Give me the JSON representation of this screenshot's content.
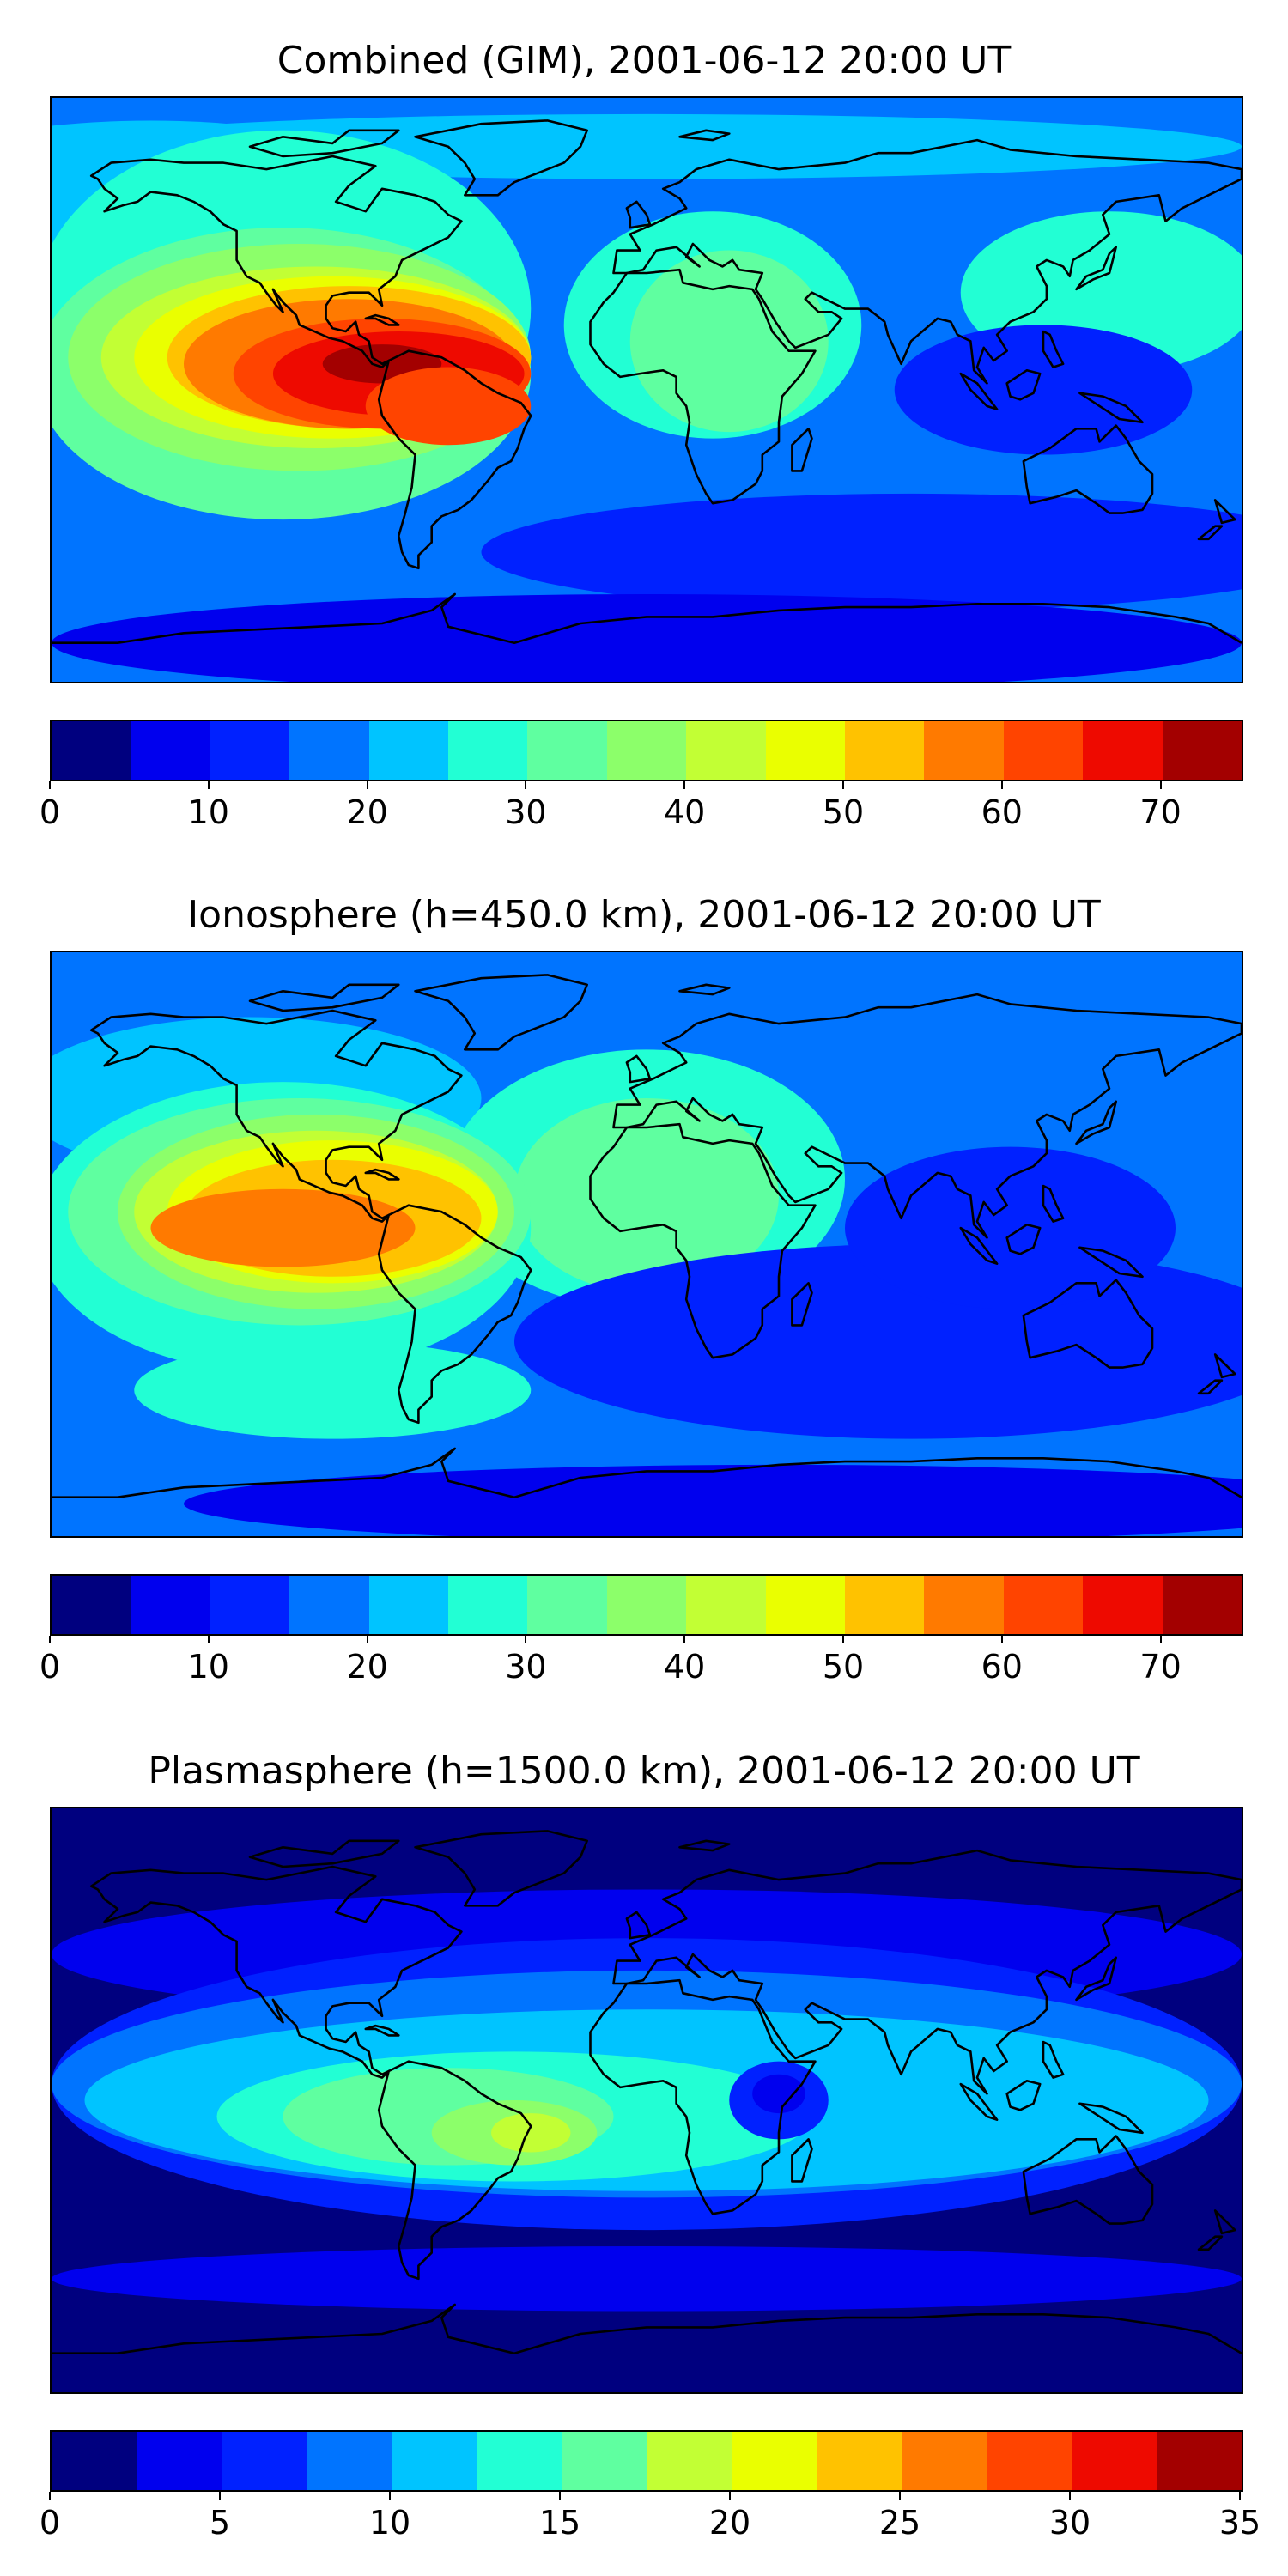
{
  "colormap": [
    "#00007f",
    "#0000ee",
    "#0021ff",
    "#0074ff",
    "#00c4ff",
    "#22ffd4",
    "#5fffa0",
    "#8cff6a",
    "#c2ff34",
    "#eaff00",
    "#ffc200",
    "#ff7a00",
    "#ff4400",
    "#ee0a00",
    "#a30000"
  ],
  "panels": [
    {
      "title": "Combined (GIM), 2001-06-12 20:00 UT",
      "chart_data": {
        "type": "heatmap",
        "title": "Combined (GIM), 2001-06-12 20:00 UT",
        "colorbar": {
          "vmin": 0,
          "vmax": 75,
          "levels": [
            0,
            5,
            10,
            15,
            20,
            25,
            30,
            35,
            40,
            45,
            50,
            55,
            60,
            65,
            70,
            75
          ],
          "ticks": [
            0,
            10,
            20,
            30,
            40,
            50,
            60,
            70
          ]
        },
        "background_level": 3,
        "features": [
          {
            "lon": -150,
            "lat": 55,
            "rx": 90,
            "ry": 28,
            "level": 4
          },
          {
            "lon": 0,
            "lat": 75,
            "rx": 180,
            "ry": 10,
            "level": 4
          },
          {
            "lon": -110,
            "lat": 25,
            "rx": 75,
            "ry": 55,
            "level": 5
          },
          {
            "lon": 20,
            "lat": 20,
            "rx": 45,
            "ry": 35,
            "level": 5
          },
          {
            "lon": 140,
            "lat": 30,
            "rx": 45,
            "ry": 25,
            "level": 5
          },
          {
            "lon": -110,
            "lat": 5,
            "rx": 75,
            "ry": 45,
            "level": 6
          },
          {
            "lon": -105,
            "lat": 10,
            "rx": 70,
            "ry": 35,
            "level": 7
          },
          {
            "lon": 25,
            "lat": 15,
            "rx": 30,
            "ry": 28,
            "level": 6
          },
          {
            "lon": -100,
            "lat": 10,
            "rx": 65,
            "ry": 28,
            "level": 8
          },
          {
            "lon": -95,
            "lat": 10,
            "rx": 60,
            "ry": 25,
            "level": 9
          },
          {
            "lon": -90,
            "lat": 10,
            "rx": 55,
            "ry": 22,
            "level": 10
          },
          {
            "lon": -90,
            "lat": 8,
            "rx": 50,
            "ry": 20,
            "level": 11
          },
          {
            "lon": -80,
            "lat": 5,
            "rx": 45,
            "ry": 17,
            "level": 12
          },
          {
            "lon": -75,
            "lat": 5,
            "rx": 38,
            "ry": 13,
            "level": 13
          },
          {
            "lon": -80,
            "lat": 8,
            "rx": 18,
            "ry": 6,
            "level": 14
          },
          {
            "lon": -60,
            "lat": -5,
            "rx": 25,
            "ry": 12,
            "level": 12
          },
          {
            "lon": 80,
            "lat": -50,
            "rx": 130,
            "ry": 18,
            "level": 2
          },
          {
            "lon": 0,
            "lat": -78,
            "rx": 180,
            "ry": 15,
            "level": 1
          },
          {
            "lon": 120,
            "lat": 0,
            "rx": 45,
            "ry": 20,
            "level": 2
          }
        ]
      },
      "colorbar_ticks": [
        "0",
        "10",
        "20",
        "30",
        "40",
        "50",
        "60",
        "70"
      ]
    },
    {
      "title": "Ionosphere  (h=450.0 km), 2001-06-12 20:00 UT",
      "chart_data": {
        "type": "heatmap",
        "title": "Ionosphere  (h=450.0 km), 2001-06-12 20:00 UT",
        "colorbar": {
          "vmin": 0,
          "vmax": 75,
          "levels": [
            0,
            5,
            10,
            15,
            20,
            25,
            30,
            35,
            40,
            45,
            50,
            55,
            60,
            65,
            70,
            75
          ],
          "ticks": [
            0,
            10,
            20,
            30,
            40,
            50,
            60,
            70
          ]
        },
        "background_level": 3,
        "features": [
          {
            "lon": -120,
            "lat": 45,
            "rx": 70,
            "ry": 25,
            "level": 4
          },
          {
            "lon": 0,
            "lat": 20,
            "rx": 60,
            "ry": 40,
            "level": 5
          },
          {
            "lon": 0,
            "lat": 15,
            "rx": 40,
            "ry": 30,
            "level": 6
          },
          {
            "lon": -110,
            "lat": 5,
            "rx": 75,
            "ry": 45,
            "level": 5
          },
          {
            "lon": -105,
            "lat": 10,
            "rx": 70,
            "ry": 35,
            "level": 6
          },
          {
            "lon": -100,
            "lat": 10,
            "rx": 60,
            "ry": 30,
            "level": 7
          },
          {
            "lon": -100,
            "lat": 10,
            "rx": 55,
            "ry": 25,
            "level": 8
          },
          {
            "lon": -95,
            "lat": 10,
            "rx": 50,
            "ry": 22,
            "level": 9
          },
          {
            "lon": -95,
            "lat": 8,
            "rx": 45,
            "ry": 18,
            "level": 10
          },
          {
            "lon": -110,
            "lat": 5,
            "rx": 40,
            "ry": 12,
            "level": 11
          },
          {
            "lon": -95,
            "lat": -45,
            "rx": 60,
            "ry": 15,
            "level": 5
          },
          {
            "lon": 80,
            "lat": -30,
            "rx": 120,
            "ry": 30,
            "level": 2
          },
          {
            "lon": 110,
            "lat": 5,
            "rx": 50,
            "ry": 25,
            "level": 2
          },
          {
            "lon": 40,
            "lat": -80,
            "rx": 180,
            "ry": 12,
            "level": 1
          }
        ]
      },
      "colorbar_ticks": [
        "0",
        "10",
        "20",
        "30",
        "40",
        "50",
        "60",
        "70"
      ]
    },
    {
      "title": "Plasmasphere (h=1500.0 km), 2001-06-12 20:00 UT",
      "chart_data": {
        "type": "heatmap",
        "title": "Plasmasphere (h=1500.0 km), 2001-06-12 20:00 UT",
        "colorbar": {
          "vmin": 0,
          "vmax": 35,
          "levels": [
            0,
            2.5,
            5,
            7.5,
            10,
            12.5,
            15,
            17.5,
            20,
            22.5,
            25,
            27.5,
            30,
            32.5,
            35
          ],
          "ticks": [
            0,
            5,
            10,
            15,
            20,
            25,
            30,
            35
          ]
        },
        "background_level": 0,
        "features": [
          {
            "lon": 0,
            "lat": 45,
            "rx": 180,
            "ry": 20,
            "level": 1
          },
          {
            "lon": 0,
            "lat": 5,
            "rx": 180,
            "ry": 45,
            "level": 2
          },
          {
            "lon": 0,
            "lat": 5,
            "rx": 180,
            "ry": 35,
            "level": 3
          },
          {
            "lon": 0,
            "lat": 0,
            "rx": 170,
            "ry": 28,
            "level": 4
          },
          {
            "lon": -40,
            "lat": -5,
            "rx": 90,
            "ry": 20,
            "level": 5
          },
          {
            "lon": -60,
            "lat": -5,
            "rx": 50,
            "ry": 15,
            "level": 6
          },
          {
            "lon": -40,
            "lat": -10,
            "rx": 25,
            "ry": 10,
            "level": 7
          },
          {
            "lon": -35,
            "lat": -10,
            "rx": 12,
            "ry": 6,
            "level": 8
          },
          {
            "lon": 40,
            "lat": 0,
            "rx": 15,
            "ry": 12,
            "level": 2
          },
          {
            "lon": 40,
            "lat": 2,
            "rx": 8,
            "ry": 6,
            "level": 1
          },
          {
            "lon": 0,
            "lat": -55,
            "rx": 180,
            "ry": 10,
            "level": 1
          }
        ]
      },
      "colorbar_ticks": [
        "0",
        "5",
        "10",
        "15",
        "20",
        "25",
        "30",
        "35"
      ]
    }
  ]
}
